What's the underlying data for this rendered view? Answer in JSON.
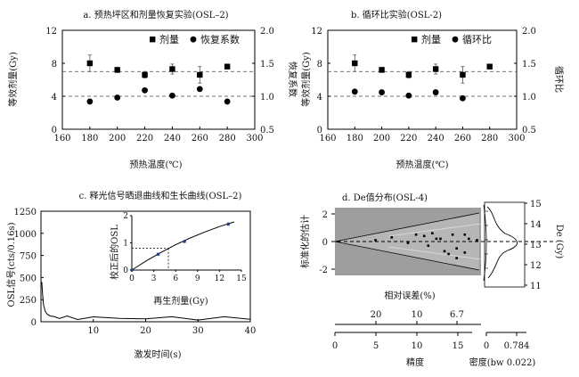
{
  "chart_data": [
    {
      "id": "a",
      "type": "scatter",
      "title": "a. 预热坪区和剂量恢复实验(OSL–2)",
      "xlabel": "预热温度(℃)",
      "ylabel_left": "等效剂量(Gy)",
      "ylabel_right": "恢复系数",
      "xlim": [
        160,
        300
      ],
      "xticks": [
        160,
        180,
        200,
        220,
        240,
        260,
        280,
        300
      ],
      "ylim_left": [
        0,
        12
      ],
      "yticks_left": [
        0,
        4,
        8,
        12
      ],
      "ylim_right": [
        0.5,
        2.0
      ],
      "yticks_right": [
        "0.5",
        "1.0",
        "1.5",
        "2.0"
      ],
      "ref_lines_left": [
        7.0,
        4.0
      ],
      "legend": [
        "剂量",
        "恢复系数"
      ],
      "series": [
        {
          "name": "剂量",
          "marker": "square",
          "axis": "left",
          "x": [
            180,
            200,
            220,
            240,
            260,
            280
          ],
          "y": [
            8.0,
            7.2,
            6.6,
            7.3,
            6.6,
            7.6
          ],
          "err": [
            1.0,
            0.3,
            0.4,
            0.6,
            1.0,
            0.0
          ]
        },
        {
          "name": "恢复系数",
          "marker": "circle",
          "axis": "right",
          "x": [
            180,
            200,
            220,
            240,
            260,
            280
          ],
          "y": [
            0.92,
            0.98,
            1.09,
            1.01,
            1.11,
            0.92
          ]
        }
      ]
    },
    {
      "id": "b",
      "type": "scatter",
      "title": "b. 循环比实验(OSL-2)",
      "xlabel": "预热温度(℃)",
      "ylabel_left": "等效剂量(Gy)",
      "ylabel_right": "循环比",
      "xlim": [
        160,
        300
      ],
      "xticks": [
        160,
        180,
        200,
        220,
        240,
        260,
        280,
        300
      ],
      "ylim_left": [
        0,
        12
      ],
      "yticks_left": [
        0,
        4,
        8,
        12
      ],
      "ylim_right": [
        0.5,
        2.0
      ],
      "yticks_right": [
        "0.5",
        "1.0",
        "1.5",
        "2.0"
      ],
      "ref_lines_left": [
        7.0,
        4.0
      ],
      "legend": [
        "剂量",
        "循环比"
      ],
      "series": [
        {
          "name": "剂量",
          "marker": "square",
          "axis": "left",
          "x": [
            180,
            200,
            220,
            240,
            260,
            280
          ],
          "y": [
            8.0,
            7.2,
            6.6,
            7.3,
            6.6,
            7.6
          ],
          "err": [
            1.0,
            0.3,
            0.4,
            0.6,
            1.0,
            0.0
          ]
        },
        {
          "name": "循环比",
          "marker": "circle",
          "axis": "right",
          "x": [
            180,
            200,
            220,
            240,
            260
          ],
          "y": [
            1.07,
            1.06,
            1.01,
            1.06,
            0.97
          ]
        }
      ]
    },
    {
      "id": "c",
      "type": "line",
      "title": "c. 释光信号晒退曲线和生长曲线(OSL–2)",
      "xlabel": "激发时间(s)",
      "ylabel": "OSL信号(cts/0.16s)",
      "xlim": [
        0,
        40
      ],
      "xticks": [
        10,
        20,
        30,
        40
      ],
      "ylim": [
        0,
        1250
      ],
      "yticks": [
        0,
        250,
        500,
        750,
        1000,
        1250
      ],
      "series": [
        {
          "name": "晒退曲线",
          "x": [
            0.16,
            0.3,
            0.5,
            0.8,
            1.2,
            1.8,
            2.5,
            3.5,
            5,
            7,
            10,
            15,
            20,
            25,
            30,
            35,
            40
          ],
          "y": [
            450,
            310,
            190,
            120,
            85,
            65,
            55,
            50,
            46,
            44,
            42,
            41,
            40,
            40,
            39,
            39,
            38
          ]
        }
      ],
      "inset": {
        "type": "line",
        "xlabel": "再生剂量(Gy)",
        "ylabel": "校正后的OSL",
        "xlim": [
          0,
          15
        ],
        "xticks": [
          0,
          3,
          6,
          9,
          12,
          15
        ],
        "ylim": [
          0,
          2
        ],
        "yticks": [
          0,
          1,
          2
        ],
        "points": {
          "x": [
            0,
            3.6,
            7.2,
            13.2
          ],
          "y": [
            0.0,
            0.58,
            1.05,
            1.69
          ]
        },
        "fit": {
          "x": [
            0,
            2,
            4,
            6,
            8,
            10,
            12,
            14
          ],
          "y": [
            0.0,
            0.34,
            0.65,
            0.93,
            1.18,
            1.4,
            1.6,
            1.77
          ]
        },
        "de_marker": {
          "x": 5.0,
          "y": 0.8
        }
      }
    },
    {
      "id": "d",
      "type": "scatter",
      "title": "d. De值分布(OSL-4)",
      "subtype": "radial plot with kernel density",
      "ylabel_left": "标准化的估计",
      "ylabel_right": "De (Gy)",
      "yticks_left": [
        -2,
        0,
        2
      ],
      "relative_error_label": "相对误差(%)",
      "relative_error_ticks": [
        "20",
        "10",
        "6.7"
      ],
      "precision_label": "精度",
      "precision_ticks": [
        0,
        5,
        10,
        15
      ],
      "density_label": "密度(bw 0.022)",
      "density_ticks": [
        "0",
        "0.784"
      ],
      "de_ticks": [
        11,
        12,
        13,
        14,
        15
      ],
      "points": {
        "precision": [
          5,
          7,
          9,
          10,
          11,
          11.5,
          12,
          12.5,
          13,
          13.5,
          14,
          14.5,
          15,
          15,
          16,
          16,
          16.5,
          17.5
        ],
        "std_estimate": [
          0.1,
          0.3,
          -0.1,
          0.5,
          0.4,
          -0.3,
          0.6,
          0.2,
          0.2,
          -0.7,
          -0.9,
          0.5,
          -0.5,
          -1.2,
          -0.8,
          0.5,
          0.2,
          0.1
        ]
      }
    }
  ]
}
